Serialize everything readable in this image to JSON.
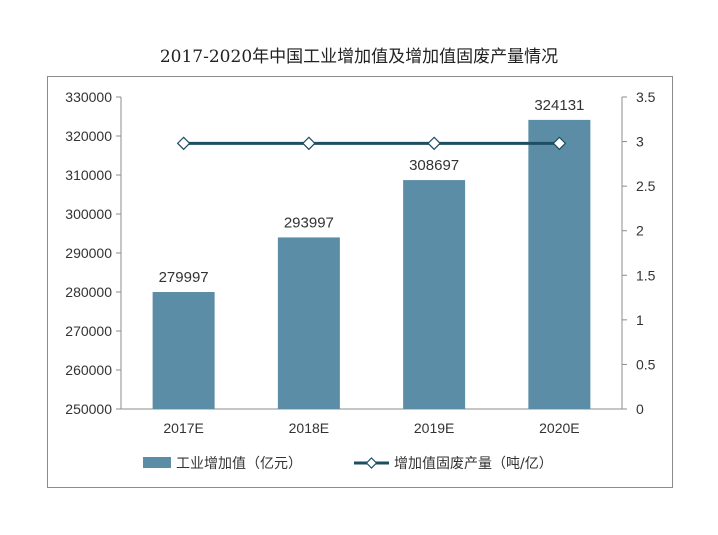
{
  "chart_data": {
    "type": "bar",
    "title": "2017-2020年中国工业增加值及增加值固废产量情况",
    "categories": [
      "2017E",
      "2018E",
      "2019E",
      "2020E"
    ],
    "series": [
      {
        "name": "工业增加值（亿元）",
        "kind": "bar",
        "axis": "left",
        "color": "#5b8ea6",
        "values": [
          279997,
          293997,
          308697,
          324131
        ],
        "labels": [
          "279997",
          "293997",
          "308697",
          "324131"
        ]
      },
      {
        "name": "增加值固废产量（吨/亿）",
        "kind": "line",
        "axis": "right",
        "color": "#1f4e62",
        "values": [
          2.98,
          2.98,
          2.98,
          2.98
        ]
      }
    ],
    "y_left": {
      "range": [
        250000,
        330000
      ],
      "ticks": [
        "250000",
        "260000",
        "270000",
        "280000",
        "290000",
        "300000",
        "310000",
        "320000",
        "330000"
      ]
    },
    "y_right": {
      "range": [
        0,
        3.5
      ],
      "ticks": [
        "0",
        "0.5",
        "1",
        "1.5",
        "2",
        "2.5",
        "3",
        "3.5"
      ]
    },
    "legend": "bottom"
  }
}
